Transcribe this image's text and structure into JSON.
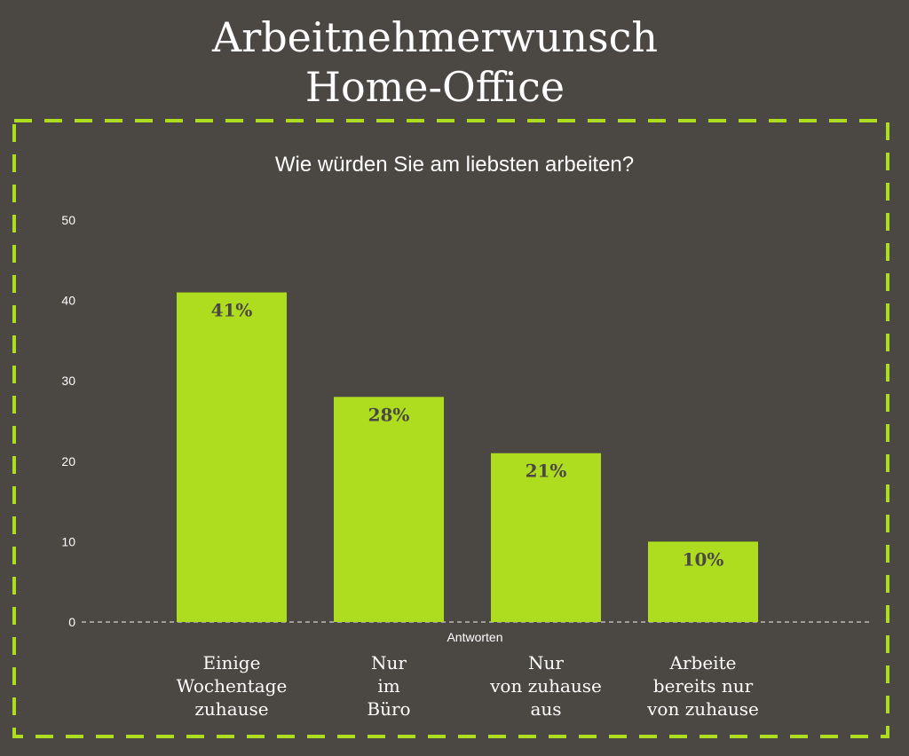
{
  "page": {
    "title_lines": [
      "Arbeitnehmerwunsch",
      "Home-Office"
    ]
  },
  "colors": {
    "background": "#4b4743",
    "bar": "#aedc1e",
    "border": "#aedc1e",
    "bar_label": "#4b4743",
    "text": "#ffffff"
  },
  "chart_data": {
    "type": "bar",
    "title": "Wie würden Sie am liebsten arbeiten?",
    "xlabel": "Antworten",
    "ylabel": "",
    "ylim": [
      0,
      50
    ],
    "yticks": [
      0,
      10,
      20,
      30,
      40,
      50
    ],
    "categories": [
      [
        "Einige",
        "Wochentage",
        "zuhause"
      ],
      [
        "Nur",
        "im",
        "Büro"
      ],
      [
        "Nur",
        "von zuhause",
        "aus"
      ],
      [
        "Arbeite",
        "bereits nur",
        "von zuhause"
      ]
    ],
    "values": [
      41,
      28,
      21,
      10
    ],
    "value_labels": [
      "41%",
      "28%",
      "21%",
      "10%"
    ],
    "grid": false,
    "legend": "none"
  }
}
